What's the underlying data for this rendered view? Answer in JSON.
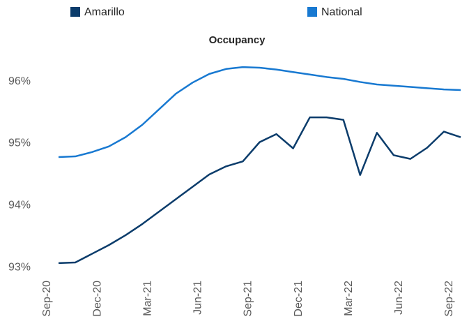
{
  "chart_data": {
    "type": "line",
    "title": "Occupancy",
    "categories": [
      "Sep-20",
      null,
      null,
      "Dec-20",
      null,
      null,
      "Mar-21",
      null,
      null,
      "Jun-21",
      null,
      null,
      "Sep-21",
      null,
      null,
      "Dec-21",
      null,
      null,
      "Mar-22",
      null,
      null,
      "Jun-22",
      null,
      null,
      "Sep-22"
    ],
    "series": [
      {
        "name": "Amarillo",
        "color": "#0b3c6b",
        "values": [
          93.07,
          93.08,
          93.22,
          93.36,
          93.52,
          93.7,
          93.9,
          94.1,
          94.3,
          94.5,
          94.63,
          94.71,
          95.02,
          95.15,
          94.92,
          95.42,
          95.42,
          95.38,
          94.49,
          95.17,
          94.81,
          94.75,
          94.93,
          95.19,
          95.1
        ]
      },
      {
        "name": "National",
        "color": "#1879d1",
        "values": [
          94.78,
          94.79,
          94.86,
          94.95,
          95.1,
          95.3,
          95.55,
          95.8,
          95.98,
          96.12,
          96.2,
          96.23,
          96.22,
          96.19,
          96.15,
          96.11,
          96.07,
          96.04,
          95.99,
          95.95,
          95.93,
          95.91,
          95.89,
          95.87,
          95.86
        ]
      }
    ],
    "ylim": [
      92.9,
      96.4
    ],
    "yticks": [
      {
        "value": 93,
        "label": "93%"
      },
      {
        "value": 94,
        "label": "94%"
      },
      {
        "value": 95,
        "label": "95%"
      },
      {
        "value": 96,
        "label": "96%"
      }
    ],
    "legend": "top",
    "grid": false
  }
}
